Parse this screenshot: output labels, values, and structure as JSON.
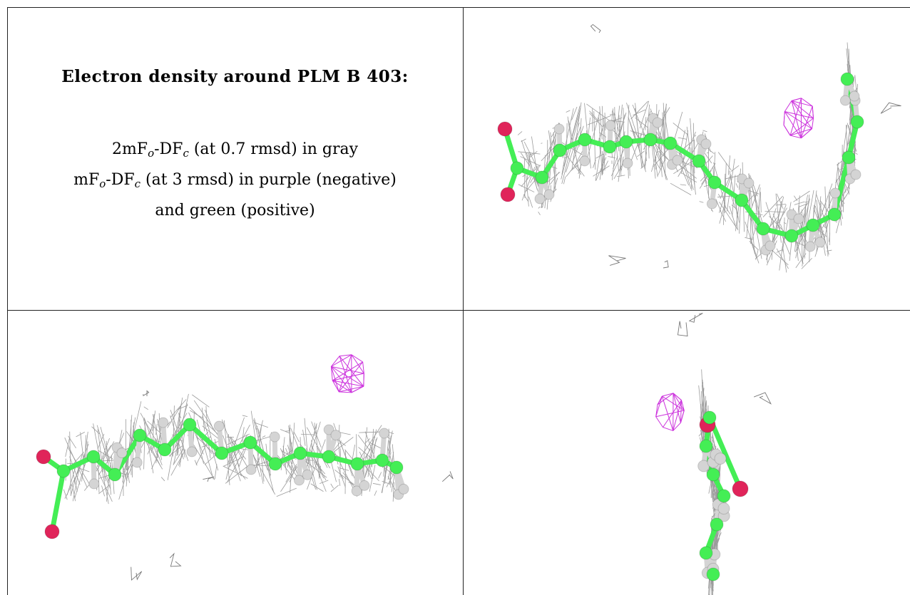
{
  "legend": {
    "title": "Electron density around PLM B 403:",
    "line1": {
      "prefix": "2mF",
      "sub1": "o",
      "mid": "-DF",
      "sub2": "c",
      "suffix": " (at 0.7 rmsd) in gray"
    },
    "line2": {
      "prefix": "mF",
      "sub1": "o",
      "mid": "-DF",
      "sub2": "c",
      "suffix": " (at 3 rmsd) in purple (negative)"
    },
    "line3": "and green (positive)"
  },
  "colors": {
    "carbon": "#44ee55",
    "hydrogen": "#d4d4d4",
    "oxygen": "#e0245a",
    "mesh_gray": "#8a8a8a",
    "mesh_purple": "#cc33dd",
    "border": "#222222"
  },
  "panels": [
    {
      "name": "view-top-right",
      "icon": "molecule-density-icon"
    },
    {
      "name": "view-bottom-left",
      "icon": "molecule-density-icon"
    },
    {
      "name": "view-bottom-right",
      "icon": "molecule-density-icon"
    }
  ]
}
